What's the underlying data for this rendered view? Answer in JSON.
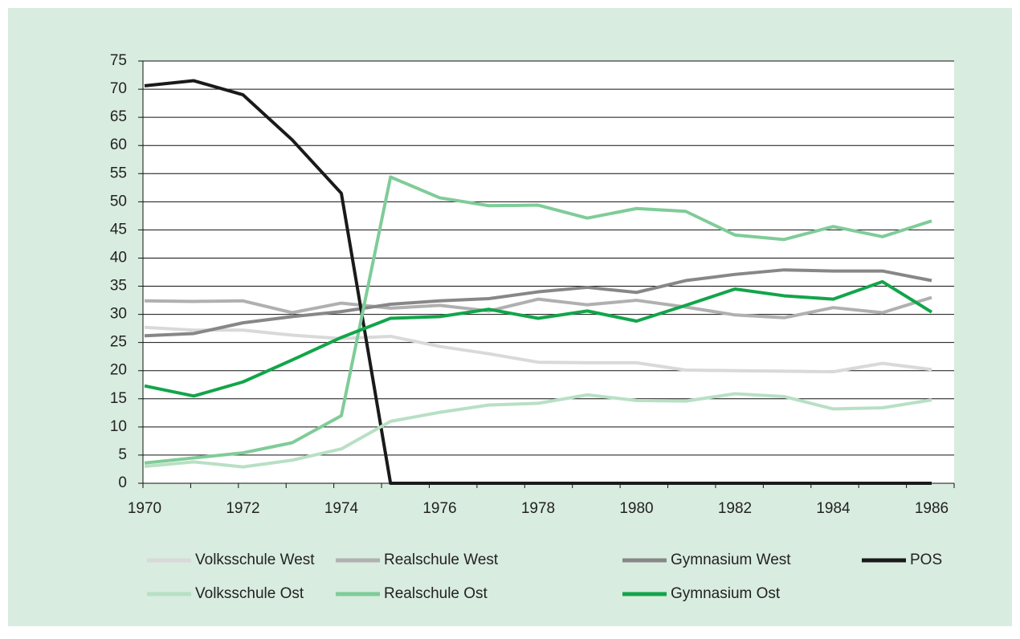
{
  "chart_data": {
    "type": "line",
    "categories": [
      "1970",
      null,
      "1972",
      null,
      "1974",
      null,
      "1976",
      null,
      "1978",
      null,
      "1980",
      null,
      "1982",
      null,
      "1984",
      null,
      "1986"
    ],
    "ylim": [
      0,
      75
    ],
    "yticks": [
      0,
      5,
      10,
      15,
      20,
      25,
      30,
      35,
      40,
      45,
      50,
      55,
      60,
      65,
      70,
      75
    ],
    "grid": true,
    "series": [
      {
        "name": "Volksschule West",
        "color": "#d9d9d9",
        "values": [
          27.7,
          27.2,
          27.2,
          26.3,
          25.7,
          26.1,
          24.3,
          23,
          21.5,
          21.4,
          21.4,
          20.1,
          20,
          19.9,
          19.8,
          21.3,
          20.2
        ]
      },
      {
        "name": "Realschule West",
        "color": "#b0b0b0",
        "values": [
          32.4,
          32.3,
          32.4,
          30.3,
          32,
          31.1,
          31.6,
          30.6,
          32.7,
          31.7,
          32.5,
          31.3,
          29.9,
          29.4,
          31.2,
          30.3,
          33
        ]
      },
      {
        "name": "Gymnasium West",
        "color": "#878787",
        "values": [
          26.2,
          26.6,
          28.5,
          29.6,
          30.5,
          31.8,
          32.4,
          32.8,
          34,
          34.8,
          33.9,
          36,
          37.1,
          37.9,
          37.7,
          37.7,
          36
        ]
      },
      {
        "name": "POS",
        "color": "#1a1a1a",
        "values": [
          70.6,
          71.5,
          69,
          61,
          51.5,
          0,
          0,
          0,
          0,
          0,
          0,
          0,
          0,
          0,
          0,
          0,
          0
        ]
      },
      {
        "name": "Volksschule Ost",
        "color": "#b8e0c4",
        "values": [
          3,
          3.8,
          2.9,
          4.1,
          6.1,
          11,
          12.6,
          13.9,
          14.2,
          15.7,
          14.7,
          14.6,
          15.9,
          15.4,
          13.2,
          13.4,
          14.8
        ]
      },
      {
        "name": "Realschule Ost",
        "color": "#7fcc98",
        "values": [
          3.6,
          4.5,
          5.4,
          7.2,
          12,
          54.4,
          50.7,
          49.3,
          49.4,
          47.1,
          48.8,
          48.3,
          44.1,
          43.3,
          45.6,
          43.8,
          46.6
        ]
      },
      {
        "name": "Gymnasium Ost",
        "color": "#12a54a",
        "values": [
          17.3,
          15.5,
          18,
          21.9,
          25.9,
          29.3,
          29.6,
          30.9,
          29.3,
          30.6,
          28.8,
          31.6,
          34.5,
          33.3,
          32.7,
          35.8,
          30.4
        ]
      }
    ]
  }
}
